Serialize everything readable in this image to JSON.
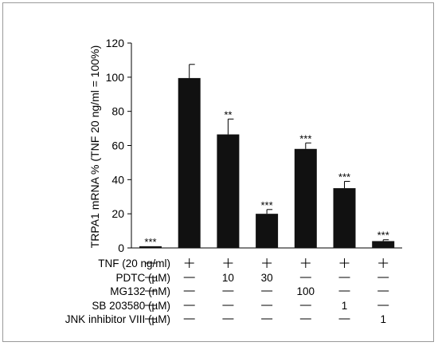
{
  "chart_data": {
    "type": "bar",
    "title": "",
    "xlabel": "",
    "ylabel": "TRPA1 mRNA % (TNF 20 ng/ml = 100%)",
    "ylim": [
      0,
      120
    ],
    "yticks": [
      0,
      20,
      40,
      60,
      80,
      100,
      120
    ],
    "grid": false,
    "legend": "none",
    "bar_color": "#111111",
    "values": [
      1,
      99.5,
      66.5,
      20,
      58,
      35,
      4
    ],
    "errors": [
      0.3,
      8,
      9,
      2.5,
      3.5,
      4,
      0.8
    ],
    "significance": [
      "***",
      "",
      "**",
      "***",
      "***",
      "***",
      "***"
    ],
    "conditions": [
      {
        "label": "TNF (20 ng/ml)",
        "values": [
          "—",
          "+",
          "+",
          "+",
          "+",
          "+",
          "+"
        ]
      },
      {
        "label": "PDTC (µM)",
        "values": [
          "—",
          "—",
          "10",
          "30",
          "—",
          "—",
          "—"
        ]
      },
      {
        "label": "MG132 (nM)",
        "values": [
          "—",
          "—",
          "—",
          "—",
          "100",
          "—",
          "—"
        ]
      },
      {
        "label": "SB 203580 (µM)",
        "values": [
          "—",
          "—",
          "—",
          "—",
          "—",
          "1",
          "—"
        ]
      },
      {
        "label": "JNK inhibitor VIII (µM)",
        "values": [
          "—",
          "—",
          "—",
          "—",
          "—",
          "—",
          "1"
        ]
      }
    ]
  }
}
